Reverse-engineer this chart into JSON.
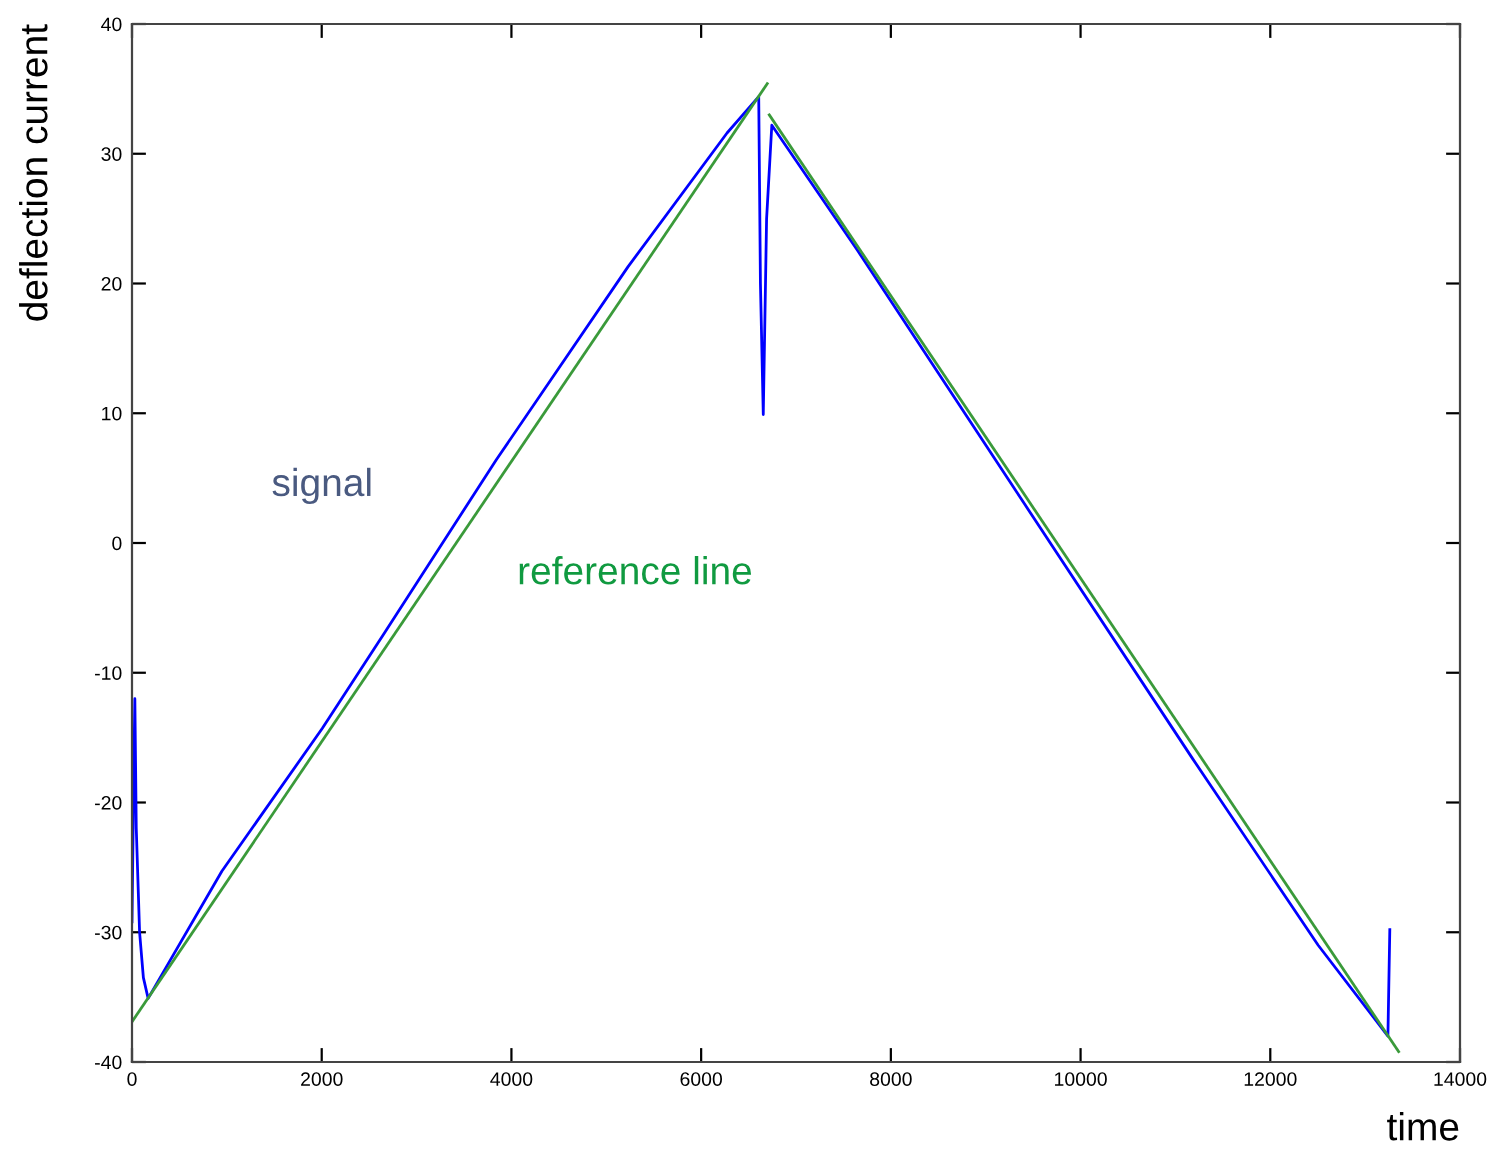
{
  "chart_data": {
    "type": "line",
    "xlabel": "time",
    "ylabel": "deflection current",
    "series": [
      {
        "name": "signal",
        "color": "#0000ff",
        "x": [
          0,
          15,
          30,
          45,
          80,
          120,
          170,
          947,
          2005,
          2656,
          3839,
          5230,
          6273,
          6607,
          6625,
          6655,
          6690,
          6745,
          7644,
          9410,
          11179,
          12505,
          13240,
          13260
        ],
        "values": [
          -29.2,
          -20,
          -12,
          -22,
          -30,
          -33.5,
          -35.1,
          -25.3,
          -14.3,
          -7.0,
          6.4,
          21.3,
          31.6,
          34.4,
          20,
          9.9,
          25,
          32.2,
          22.6,
          3.0,
          -16.6,
          -31.0,
          -38.0,
          -29.8
        ]
      },
      {
        "name": "reference line",
        "color": "#3a9a3a",
        "x": [
          0,
          6697
        ],
        "values": [
          -36.9,
          35.4
        ]
      },
      {
        "color": "#3a9a3a",
        "x": [
          6718,
          13353
        ],
        "values": [
          33.0,
          -39.2
        ]
      }
    ],
    "xlim": [
      0,
      14000
    ],
    "xticks": [
      0,
      2000,
      4000,
      6000,
      8000,
      10000,
      12000,
      14000
    ],
    "ylim": [
      -40,
      40
    ],
    "yticks": [
      -40,
      -30,
      -20,
      -10,
      0,
      10,
      20,
      30,
      40
    ],
    "grid": false,
    "legend": false,
    "marker": "none",
    "line_style": "solid"
  }
}
